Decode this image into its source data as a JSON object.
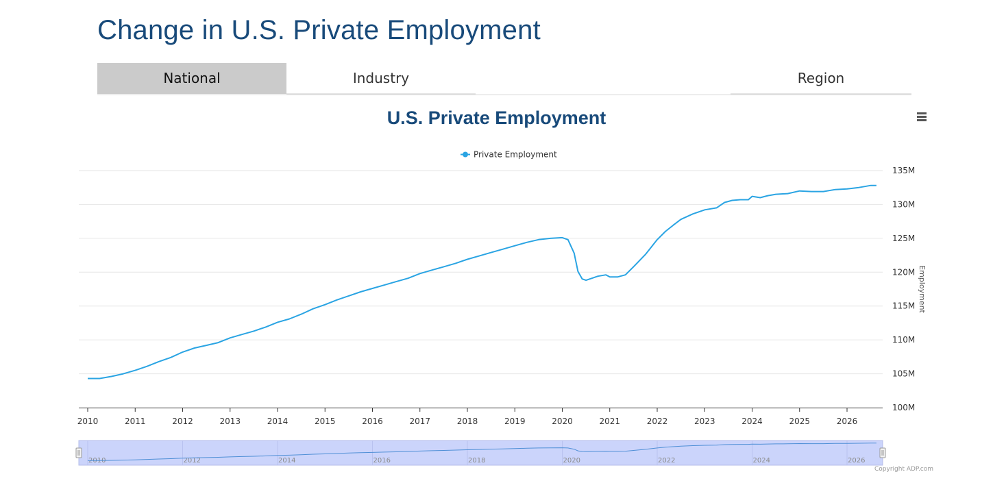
{
  "page": {
    "title": "Change in U.S. Private Employment"
  },
  "tabs": [
    {
      "label": "National",
      "active": true
    },
    {
      "label": "Industry",
      "active": false
    },
    {
      "label": "",
      "active": false
    },
    {
      "label": "Region",
      "active": false
    }
  ],
  "chart": {
    "menu_icon": "hamburger-menu-icon"
  },
  "copyright": "Copyright ADP.com",
  "colors": {
    "line": "#2aa4e3",
    "title": "#184a7a",
    "navigator_mask": "#cbd4fb"
  },
  "chart_data": {
    "type": "line",
    "title": "U.S. Private Employment",
    "ylabel": "Employment",
    "xlabel": "",
    "ylim": [
      100,
      135
    ],
    "xlim": [
      2010.0,
      2026.75
    ],
    "grid": true,
    "legend_position": "top-center",
    "y_axis_side": "right",
    "y_ticks": [
      "100M",
      "105M",
      "110M",
      "115M",
      "120M",
      "125M",
      "130M",
      "135M"
    ],
    "x_ticks": [
      "2010",
      "2011",
      "2012",
      "2013",
      "2014",
      "2015",
      "2016",
      "2017",
      "2018",
      "2019",
      "2020",
      "2021",
      "2022",
      "2023",
      "2024",
      "2025",
      "2026"
    ],
    "navigator_ticks": [
      "2010",
      "2012",
      "2014",
      "2016",
      "2018",
      "2020",
      "2022",
      "2024",
      "2026"
    ],
    "series": [
      {
        "name": "Private Employment",
        "x": [
          2010.0,
          2010.25,
          2010.5,
          2010.75,
          2011.0,
          2011.25,
          2011.5,
          2011.75,
          2012.0,
          2012.25,
          2012.5,
          2012.75,
          2013.0,
          2013.25,
          2013.5,
          2013.75,
          2014.0,
          2014.25,
          2014.5,
          2014.75,
          2015.0,
          2015.25,
          2015.5,
          2015.75,
          2016.0,
          2016.25,
          2016.5,
          2016.75,
          2017.0,
          2017.25,
          2017.5,
          2017.75,
          2018.0,
          2018.25,
          2018.5,
          2018.75,
          2019.0,
          2019.25,
          2019.5,
          2019.75,
          2020.0,
          2020.12,
          2020.25,
          2020.33,
          2020.42,
          2020.5,
          2020.58,
          2020.75,
          2020.92,
          2021.0,
          2021.17,
          2021.33,
          2021.5,
          2021.75,
          2022.0,
          2022.17,
          2022.33,
          2022.5,
          2022.75,
          2023.0,
          2023.25,
          2023.42,
          2023.58,
          2023.75,
          2023.92,
          2024.0,
          2024.17,
          2024.33,
          2024.5,
          2024.75,
          2025.0,
          2025.25,
          2025.5,
          2025.75,
          2026.0,
          2026.25,
          2026.5,
          2026.62
        ],
        "values": [
          104.3,
          104.3,
          104.6,
          105.0,
          105.5,
          106.1,
          106.8,
          107.4,
          108.2,
          108.8,
          109.2,
          109.6,
          110.3,
          110.8,
          111.3,
          111.9,
          112.6,
          113.1,
          113.8,
          114.6,
          115.2,
          115.9,
          116.5,
          117.1,
          117.6,
          118.1,
          118.6,
          119.1,
          119.8,
          120.3,
          120.8,
          121.3,
          121.9,
          122.4,
          122.9,
          123.4,
          123.9,
          124.4,
          124.8,
          125.0,
          125.1,
          124.8,
          122.8,
          120.1,
          119.0,
          118.8,
          119.0,
          119.4,
          119.6,
          119.3,
          119.3,
          119.6,
          120.8,
          122.6,
          124.8,
          126.0,
          126.9,
          127.8,
          128.6,
          129.2,
          129.5,
          130.3,
          130.6,
          130.7,
          130.7,
          131.2,
          131.0,
          131.3,
          131.5,
          131.6,
          132.0,
          131.9,
          131.9,
          132.2,
          132.3,
          132.5,
          132.8,
          132.8
        ]
      }
    ]
  }
}
